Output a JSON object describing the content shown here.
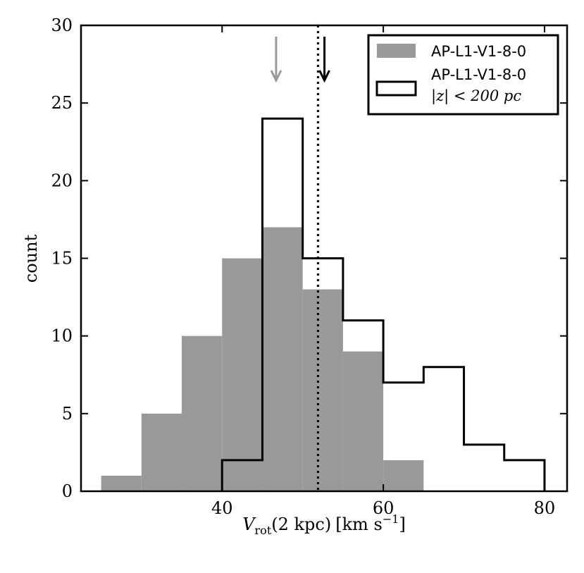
{
  "chart_data": {
    "type": "bar",
    "title": "",
    "xlabel": "V_rot (2 kpc) [km s^-1]",
    "xlabel_parts": {
      "symbol": "V",
      "subscript": "rot",
      "arg": "(2 kpc)",
      "units": "[km s",
      "exp": "−1",
      "close": "]"
    },
    "ylabel": "count",
    "xlim": [
      22.5,
      82.8
    ],
    "ylim": [
      0,
      30
    ],
    "xticks": [
      40,
      60,
      80
    ],
    "xtick_labels": [
      "40",
      "60",
      "80"
    ],
    "yticks": [
      0,
      5,
      10,
      15,
      20,
      25,
      30
    ],
    "ytick_labels": [
      "0",
      "5",
      "10",
      "15",
      "20",
      "25",
      "30"
    ],
    "bin_edges": [
      25,
      30,
      35,
      40,
      45,
      50,
      55,
      60,
      65,
      70,
      75,
      80
    ],
    "series": [
      {
        "name": "AP-L1-V1-8-0",
        "style": "filled",
        "color": "#999999",
        "values": [
          1,
          5,
          10,
          15,
          17,
          13,
          9,
          2,
          0,
          0,
          0
        ]
      },
      {
        "name": "AP-L1-V1-8-0",
        "name_line2": "|z| < 200 pc",
        "style": "step",
        "color": "#000000",
        "values": [
          0,
          0,
          0,
          2,
          24,
          15,
          11,
          7,
          8,
          3,
          2
        ]
      }
    ],
    "vline": {
      "x": 51.9,
      "style": "dotted",
      "color": "#000000"
    },
    "arrows": [
      {
        "x": 46.7,
        "color": "#999999"
      },
      {
        "x": 52.7,
        "color": "#000000"
      }
    ],
    "legend_position": "top-right",
    "grid": false
  }
}
